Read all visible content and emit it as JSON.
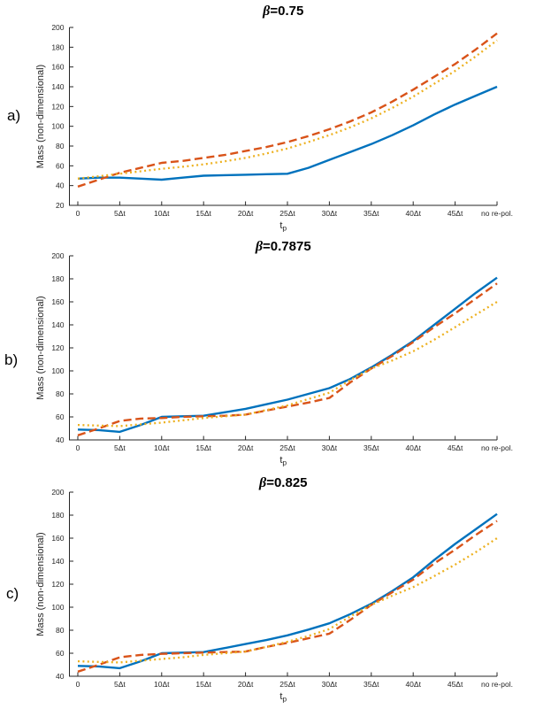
{
  "figure": {
    "background": "#ffffff",
    "axis_color": "#262626",
    "text_color": "#262626",
    "title_color": "#000000"
  },
  "panels": [
    {
      "label": "a)"
    },
    {
      "label": "b)"
    },
    {
      "label": "c)"
    }
  ],
  "chart_data": [
    {
      "type": "line",
      "title": "β=0.75",
      "title_symbol": "β",
      "title_rest": "=0.75",
      "xlabel": "t_p",
      "xlabel_base": "t",
      "xlabel_sub": "p",
      "ylabel": "Mass (non-dimensional)",
      "grid": false,
      "legend": null,
      "ylim": [
        20,
        200
      ],
      "y_ticks": [
        20,
        40,
        60,
        80,
        100,
        120,
        140,
        160,
        180,
        200
      ],
      "x_tick_positions": [
        0,
        5,
        10,
        15,
        20,
        25,
        30,
        35,
        40,
        45,
        50
      ],
      "x_tick_labels": [
        "0",
        "5Δt",
        "10Δt",
        "15Δt",
        "20Δt",
        "25Δt",
        "30Δt",
        "35Δt",
        "40Δt",
        "45Δt",
        "no re-pol."
      ],
      "x": [
        0,
        2.5,
        5,
        7.5,
        10,
        12.5,
        15,
        17.5,
        20,
        22.5,
        25,
        27.5,
        30,
        32.5,
        35,
        37.5,
        40,
        42.5,
        45,
        47.5,
        50
      ],
      "series": [
        {
          "name": "solid-blue",
          "color": "#0072BD",
          "style": "solid",
          "values": [
            47,
            48,
            48,
            47,
            46,
            48,
            50,
            50.5,
            51,
            51.5,
            52,
            58,
            66,
            74,
            82,
            91,
            101,
            112,
            122,
            131,
            140
          ]
        },
        {
          "name": "dashed-red",
          "color": "#D95319",
          "style": "dashed",
          "values": [
            39,
            46,
            53,
            58,
            63,
            65,
            68,
            71,
            75,
            79,
            84,
            90,
            97,
            105,
            114,
            125,
            137,
            150,
            163,
            178,
            194
          ]
        },
        {
          "name": "dotted-yellow",
          "color": "#EDB120",
          "style": "dotted",
          "values": [
            47,
            49.5,
            52,
            54.5,
            57,
            59,
            61.5,
            64.5,
            68,
            72.5,
            77.5,
            84,
            91,
            99,
            108,
            118.5,
            130,
            143,
            156,
            171,
            187
          ]
        }
      ]
    },
    {
      "type": "line",
      "title": "β=0.7875",
      "title_symbol": "β",
      "title_rest": "=0.7875",
      "xlabel": "t_p",
      "xlabel_base": "t",
      "xlabel_sub": "p",
      "ylabel": "Mass (non-dimensional)",
      "grid": false,
      "legend": null,
      "ylim": [
        40,
        200
      ],
      "y_ticks": [
        40,
        60,
        80,
        100,
        120,
        140,
        160,
        180,
        200
      ],
      "x_tick_positions": [
        0,
        5,
        10,
        15,
        20,
        25,
        30,
        35,
        40,
        45,
        50
      ],
      "x_tick_labels": [
        "0",
        "5Δt",
        "10Δt",
        "15Δt",
        "20Δt",
        "25Δt",
        "30Δt",
        "35Δt",
        "40Δt",
        "45Δt",
        "no re-pol."
      ],
      "x": [
        0,
        2.5,
        5,
        7.5,
        10,
        12.5,
        15,
        17.5,
        20,
        22.5,
        25,
        27.5,
        30,
        32.5,
        35,
        37.5,
        40,
        42.5,
        45,
        47.5,
        50
      ],
      "series": [
        {
          "name": "solid-blue",
          "color": "#0072BD",
          "style": "solid",
          "values": [
            49,
            48.5,
            47,
            53,
            60,
            60.5,
            61,
            64,
            67,
            71,
            75,
            80,
            85,
            93,
            103,
            114,
            126,
            140,
            154,
            168,
            181
          ]
        },
        {
          "name": "dashed-red",
          "color": "#D95319",
          "style": "dashed",
          "values": [
            44,
            50,
            56.5,
            58.5,
            59,
            60,
            60.5,
            61,
            62,
            65.5,
            69,
            72.5,
            76.5,
            90,
            102,
            113,
            125,
            138,
            150,
            163,
            176
          ]
        },
        {
          "name": "dotted-yellow",
          "color": "#EDB120",
          "style": "dotted",
          "values": [
            53,
            52.5,
            52,
            53.5,
            55,
            57,
            59,
            60.5,
            62,
            66,
            70,
            75.5,
            81,
            92,
            102,
            109,
            117,
            127,
            138,
            149,
            160
          ]
        }
      ]
    },
    {
      "type": "line",
      "title": "β=0.825",
      "title_symbol": "β",
      "title_rest": "=0.825",
      "xlabel": "t_p",
      "xlabel_base": "t",
      "xlabel_sub": "p",
      "ylabel": "Mass (non-dimensional)",
      "grid": false,
      "legend": null,
      "ylim": [
        40,
        200
      ],
      "y_ticks": [
        40,
        60,
        80,
        100,
        120,
        140,
        160,
        180,
        200
      ],
      "x_tick_positions": [
        0,
        5,
        10,
        15,
        20,
        25,
        30,
        35,
        40,
        45,
        50
      ],
      "x_tick_labels": [
        "0",
        "5Δt",
        "10Δt",
        "15Δt",
        "20Δt",
        "25Δt",
        "30Δt",
        "35Δt",
        "40Δt",
        "45Δt",
        "no re-pol."
      ],
      "x": [
        0,
        2.5,
        5,
        7.5,
        10,
        12.5,
        15,
        17.5,
        20,
        22.5,
        25,
        27.5,
        30,
        32.5,
        35,
        37.5,
        40,
        42.5,
        45,
        47.5,
        50
      ],
      "series": [
        {
          "name": "solid-blue",
          "color": "#0072BD",
          "style": "solid",
          "values": [
            49,
            48.5,
            47,
            53,
            60,
            60.5,
            61,
            64.5,
            68,
            71.5,
            75.5,
            80.5,
            86,
            94,
            103,
            114,
            126,
            141,
            155,
            168,
            181
          ]
        },
        {
          "name": "dashed-red",
          "color": "#D95319",
          "style": "dashed",
          "values": [
            44,
            50,
            56.5,
            58.5,
            59.5,
            60,
            60.5,
            61,
            61.5,
            65.5,
            69,
            73,
            77,
            89,
            102,
            113,
            124,
            138,
            150,
            163,
            175
          ]
        },
        {
          "name": "dotted-yellow",
          "color": "#EDB120",
          "style": "dotted",
          "values": [
            53,
            52.5,
            52,
            53.5,
            55,
            56.5,
            58.5,
            60,
            61.5,
            65.5,
            70,
            75,
            81,
            92,
            102,
            110,
            117.5,
            127,
            137,
            148,
            160
          ]
        }
      ]
    }
  ]
}
